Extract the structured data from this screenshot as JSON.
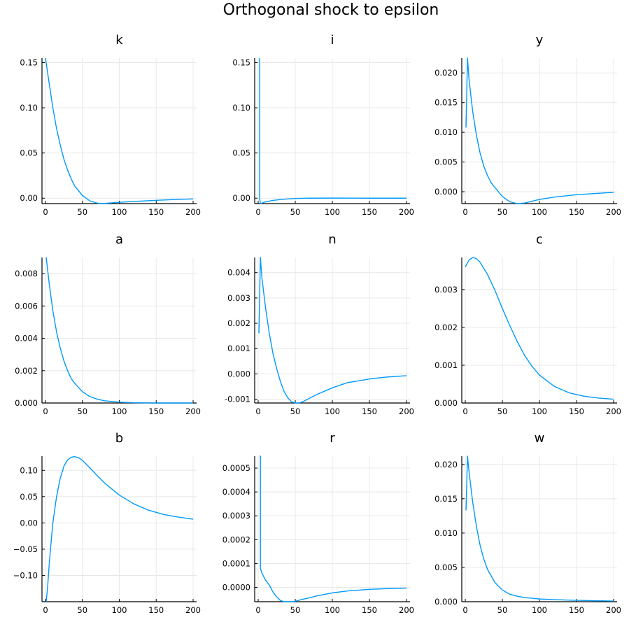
{
  "figure": {
    "title": "Orthogonal shock to epsilon",
    "line_color": "#009AFA"
  },
  "chart_data": [
    {
      "type": "line",
      "title": "k",
      "xlim": [
        0,
        200
      ],
      "ylim": [
        -0.006,
        0.155
      ],
      "xticks": [
        0,
        50,
        100,
        150,
        200
      ],
      "xtick_labels": [
        "0",
        "50",
        "100",
        "150",
        "200"
      ],
      "yticks": [
        0,
        0.05,
        0.1,
        0.15
      ],
      "ytick_labels": [
        "0.00",
        "0.05",
        "0.10",
        "0.15"
      ],
      "grid": true,
      "series": [
        {
          "x": [
            0,
            5,
            10,
            15,
            20,
            25,
            30,
            35,
            40,
            50,
            60,
            70,
            75,
            80,
            90,
            100,
            120,
            150,
            175,
            200
          ],
          "y": [
            0.155,
            0.127,
            0.1,
            0.077,
            0.059,
            0.043,
            0.031,
            0.021,
            0.013,
            0.003,
            -0.003,
            -0.0055,
            -0.006,
            -0.0058,
            -0.0052,
            -0.0046,
            -0.0036,
            -0.0024,
            -0.0015,
            -0.0008
          ]
        }
      ]
    },
    {
      "type": "line",
      "title": "i",
      "xlim": [
        0,
        200
      ],
      "ylim": [
        -0.006,
        0.155
      ],
      "xticks": [
        0,
        50,
        100,
        150,
        200
      ],
      "xtick_labels": [
        "0",
        "50",
        "100",
        "150",
        "200"
      ],
      "yticks": [
        0,
        0.05,
        0.1,
        0.15
      ],
      "ytick_labels": [
        "0.00",
        "0.05",
        "0.10",
        "0.15"
      ],
      "grid": true,
      "series": [
        {
          "x": [
            2,
            2,
            3,
            10,
            20,
            30,
            40,
            50,
            70,
            100,
            150,
            200
          ],
          "y": [
            0.155,
            0.0,
            -0.006,
            -0.004,
            -0.0025,
            -0.0015,
            -0.0008,
            -0.0003,
            0.0,
            0.0001,
            0.0,
            0.0
          ]
        }
      ]
    },
    {
      "type": "line",
      "title": "y",
      "xlim": [
        0,
        200
      ],
      "ylim": [
        -0.002,
        0.0225
      ],
      "xticks": [
        0,
        50,
        100,
        150,
        200
      ],
      "xtick_labels": [
        "0",
        "50",
        "100",
        "150",
        "200"
      ],
      "yticks": [
        0,
        0.005,
        0.01,
        0.015,
        0.02
      ],
      "ytick_labels": [
        "0.000",
        "0.005",
        "0.010",
        "0.015",
        "0.020"
      ],
      "grid": true,
      "series": [
        {
          "x": [
            1,
            3,
            5,
            10,
            15,
            20,
            25,
            30,
            35,
            40,
            50,
            60,
            70,
            80,
            90,
            100,
            120,
            150,
            175,
            200
          ],
          "y": [
            0.0108,
            0.0225,
            0.019,
            0.0135,
            0.0095,
            0.0065,
            0.0043,
            0.0027,
            0.0015,
            0.0007,
            -0.0008,
            -0.0017,
            -0.002,
            -0.0019,
            -0.0016,
            -0.0013,
            -0.0009,
            -0.0005,
            -0.0003,
            -0.0001
          ]
        }
      ]
    },
    {
      "type": "line",
      "title": "a",
      "xlim": [
        0,
        200
      ],
      "ylim": [
        0,
        0.009
      ],
      "xticks": [
        0,
        50,
        100,
        150,
        200
      ],
      "xtick_labels": [
        "0",
        "50",
        "100",
        "150",
        "200"
      ],
      "yticks": [
        0,
        0.002,
        0.004,
        0.006,
        0.008
      ],
      "ytick_labels": [
        "0.000",
        "0.002",
        "0.004",
        "0.006",
        "0.008"
      ],
      "grid": true,
      "series": [
        {
          "x": [
            1,
            5,
            10,
            15,
            20,
            25,
            30,
            35,
            40,
            50,
            60,
            70,
            80,
            100,
            120,
            150,
            200
          ],
          "y": [
            0.009,
            0.0074,
            0.0057,
            0.0044,
            0.0034,
            0.0026,
            0.002,
            0.0015,
            0.0012,
            0.0007,
            0.0004,
            0.00024,
            0.00014,
            5e-05,
            2e-05,
            0.0,
            0.0
          ]
        }
      ]
    },
    {
      "type": "line",
      "title": "n",
      "xlim": [
        0,
        200
      ],
      "ylim": [
        -0.00115,
        0.0046
      ],
      "xticks": [
        0,
        50,
        100,
        150,
        200
      ],
      "xtick_labels": [
        "0",
        "50",
        "100",
        "150",
        "200"
      ],
      "yticks": [
        -0.001,
        0,
        0.001,
        0.002,
        0.003,
        0.004
      ],
      "ytick_labels": [
        "-0.001",
        "0.000",
        "0.001",
        "0.002",
        "0.003",
        "0.004"
      ],
      "grid": true,
      "series": [
        {
          "x": [
            1,
            3,
            5,
            10,
            15,
            20,
            25,
            30,
            35,
            40,
            45,
            50,
            55,
            60,
            70,
            80,
            100,
            120,
            150,
            175,
            200
          ],
          "y": [
            0.0016,
            0.0046,
            0.0038,
            0.0026,
            0.0016,
            0.0008,
            0.0002,
            -0.0003,
            -0.0007,
            -0.00095,
            -0.0011,
            -0.00115,
            -0.00115,
            -0.0011,
            -0.00095,
            -0.0008,
            -0.00055,
            -0.00035,
            -0.0002,
            -0.00012,
            -7e-05
          ]
        }
      ]
    },
    {
      "type": "line",
      "title": "c",
      "xlim": [
        0,
        200
      ],
      "ylim": [
        0,
        0.00385
      ],
      "xticks": [
        0,
        50,
        100,
        150,
        200
      ],
      "xtick_labels": [
        "0",
        "50",
        "100",
        "150",
        "200"
      ],
      "yticks": [
        0,
        0.001,
        0.002,
        0.003
      ],
      "ytick_labels": [
        "0.000",
        "0.001",
        "0.002",
        "0.003"
      ],
      "grid": true,
      "series": [
        {
          "x": [
            0,
            5,
            10,
            15,
            20,
            30,
            40,
            50,
            60,
            70,
            80,
            90,
            100,
            120,
            140,
            160,
            180,
            200
          ],
          "y": [
            0.0036,
            0.00378,
            0.00385,
            0.00382,
            0.00372,
            0.0034,
            0.00298,
            0.0025,
            0.00205,
            0.00163,
            0.00126,
            0.00097,
            0.00074,
            0.00044,
            0.00027,
            0.00018,
            0.00013,
            0.0001
          ]
        }
      ]
    },
    {
      "type": "line",
      "title": "b",
      "xlim": [
        0,
        200
      ],
      "ylim": [
        -0.15,
        0.127
      ],
      "xticks": [
        0,
        50,
        100,
        150,
        200
      ],
      "xtick_labels": [
        "0",
        "50",
        "100",
        "150",
        "200"
      ],
      "yticks": [
        -0.1,
        -0.05,
        0,
        0.05,
        0.1
      ],
      "ytick_labels": [
        "−0.10",
        "−0.05",
        "0.00",
        "0.05",
        "0.10"
      ],
      "grid": true,
      "series": [
        {
          "x": [
            1,
            3,
            5,
            8,
            10,
            15,
            20,
            25,
            30,
            35,
            40,
            45,
            50,
            60,
            70,
            80,
            100,
            120,
            140,
            160,
            180,
            200
          ],
          "y": [
            -0.15,
            -0.12,
            -0.08,
            -0.03,
            0.0,
            0.05,
            0.085,
            0.108,
            0.12,
            0.125,
            0.126,
            0.124,
            0.119,
            0.105,
            0.09,
            0.076,
            0.053,
            0.036,
            0.024,
            0.016,
            0.011,
            0.007
          ]
        }
      ]
    },
    {
      "type": "line",
      "title": "r",
      "xlim": [
        0,
        200
      ],
      "ylim": [
        -6e-05,
        0.00055
      ],
      "xticks": [
        0,
        50,
        100,
        150,
        200
      ],
      "xtick_labels": [
        "0",
        "50",
        "100",
        "150",
        "200"
      ],
      "yticks": [
        0,
        0.0001,
        0.0002,
        0.0003,
        0.0004,
        0.0005
      ],
      "ytick_labels": [
        "0.0000",
        "0.0001",
        "0.0002",
        "0.0003",
        "0.0004",
        "0.0005"
      ],
      "grid": true,
      "series": [
        {
          "x": [
            2,
            3,
            3,
            5,
            10,
            15,
            20,
            25,
            30,
            35,
            40,
            45,
            50,
            60,
            70,
            80,
            100,
            120,
            150,
            175,
            200
          ],
          "y": [
            0.00055,
            0.00055,
            8e-05,
            6e-05,
            3e-05,
            1e-05,
            -2e-05,
            -4e-05,
            -5.5e-05,
            -6e-05,
            -6e-05,
            -6e-05,
            -5.8e-05,
            -5e-05,
            -4.3e-05,
            -3.5e-05,
            -2.3e-05,
            -1.5e-05,
            -8e-06,
            -5e-06,
            -3e-06
          ]
        }
      ]
    },
    {
      "type": "line",
      "title": "w",
      "xlim": [
        0,
        200
      ],
      "ylim": [
        0,
        0.0212
      ],
      "xticks": [
        0,
        50,
        100,
        150,
        200
      ],
      "xtick_labels": [
        "0",
        "50",
        "100",
        "150",
        "200"
      ],
      "yticks": [
        0,
        0.005,
        0.01,
        0.015,
        0.02
      ],
      "ytick_labels": [
        "0.000",
        "0.005",
        "0.010",
        "0.015",
        "0.020"
      ],
      "grid": true,
      "series": [
        {
          "x": [
            1,
            3,
            5,
            10,
            15,
            20,
            25,
            30,
            40,
            50,
            60,
            70,
            80,
            100,
            120,
            150,
            200
          ],
          "y": [
            0.0133,
            0.0212,
            0.019,
            0.0145,
            0.011,
            0.0082,
            0.0062,
            0.0047,
            0.0028,
            0.0017,
            0.0011,
            0.0008,
            0.0006,
            0.0004,
            0.0003,
            0.0002,
            0.0001
          ]
        }
      ]
    }
  ]
}
